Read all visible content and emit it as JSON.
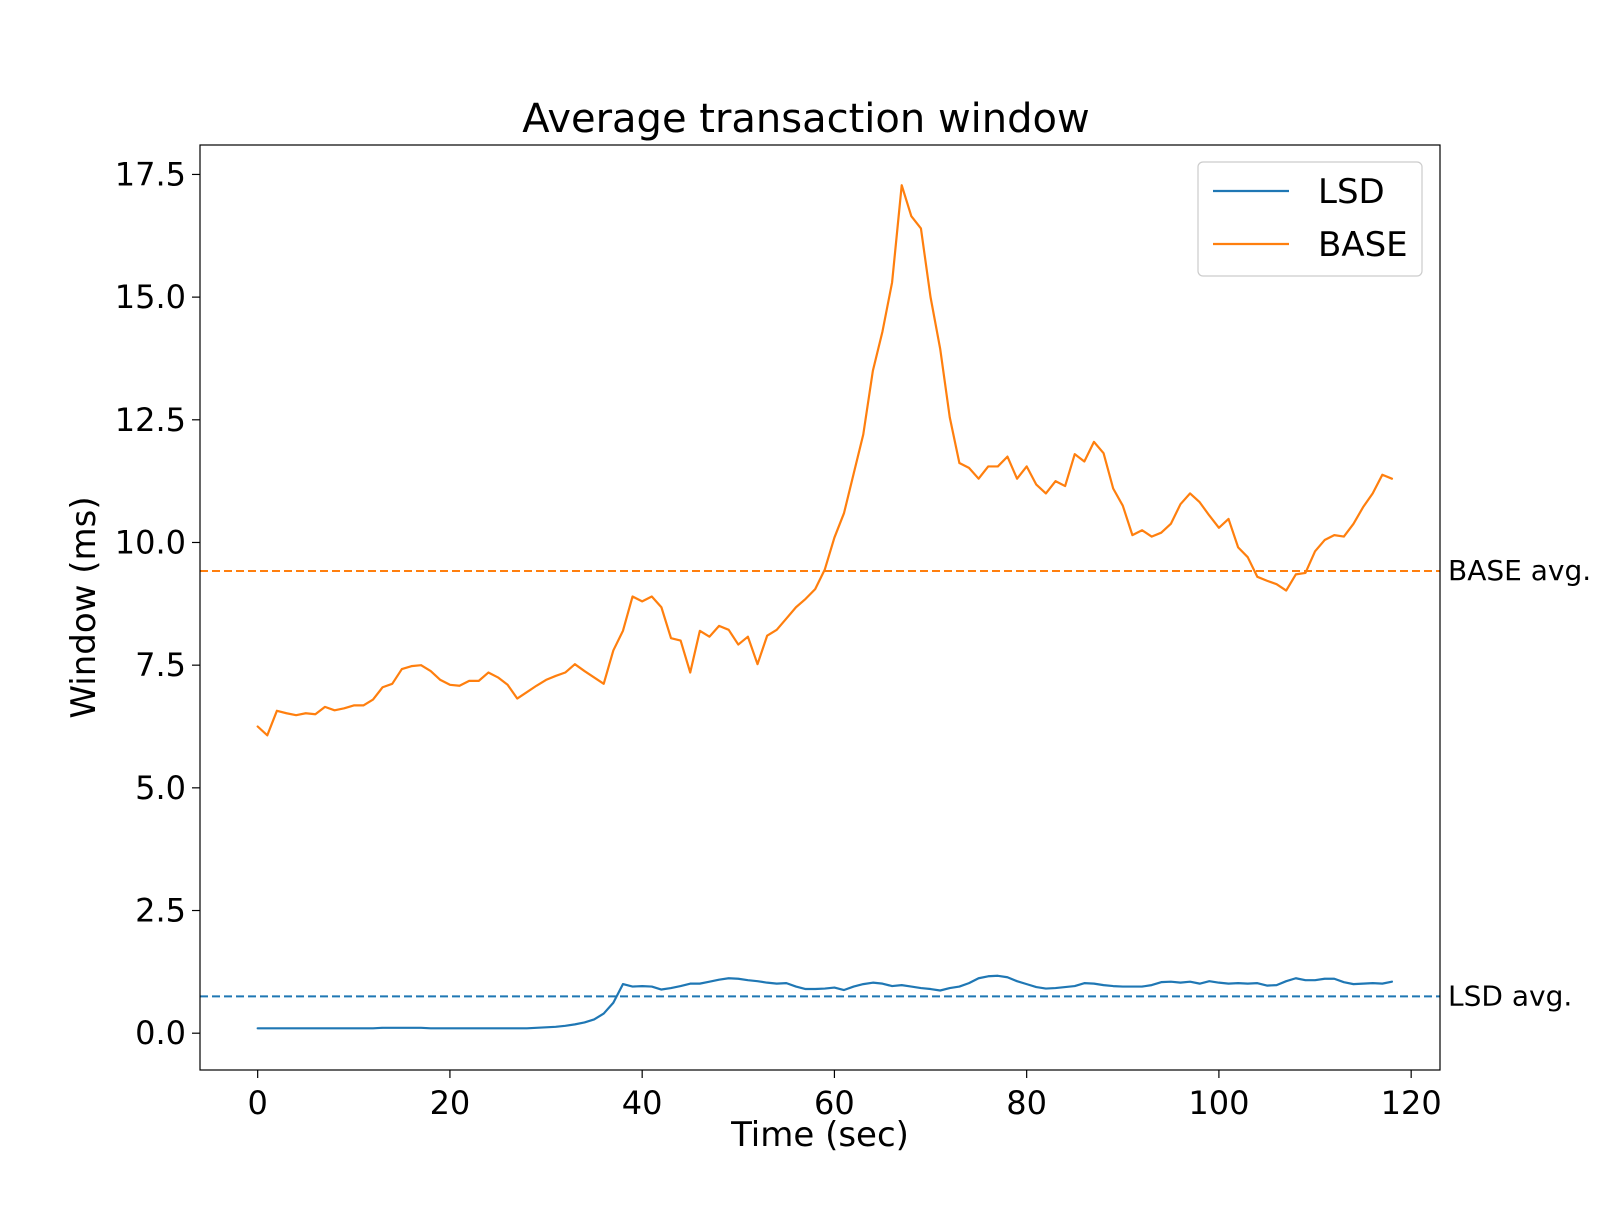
{
  "chart_data": {
    "type": "line",
    "title": "Average transaction window",
    "xlabel": "Time (sec)",
    "ylabel": "Window (ms)",
    "xlim": [
      -6,
      123
    ],
    "ylim": [
      -0.75,
      18.1
    ],
    "xticks": [
      0,
      20,
      40,
      60,
      80,
      100,
      120
    ],
    "xtick_labels": [
      "0",
      "20",
      "40",
      "60",
      "80",
      "100",
      "120"
    ],
    "yticks": [
      0,
      2.5,
      5,
      7.5,
      10,
      12.5,
      15,
      17.5
    ],
    "ytick_labels": [
      "0.0",
      "2.5",
      "5.0",
      "7.5",
      "10.0",
      "12.5",
      "15.0",
      "17.5"
    ],
    "grid": false,
    "legend_position": "top-right",
    "series": [
      {
        "name": "LSD",
        "color": "#1f77b4",
        "x": [
          0,
          1,
          2,
          3,
          4,
          5,
          6,
          7,
          8,
          9,
          10,
          11,
          12,
          13,
          14,
          15,
          16,
          17,
          18,
          19,
          20,
          21,
          22,
          23,
          24,
          25,
          26,
          27,
          28,
          29,
          30,
          31,
          32,
          33,
          34,
          35,
          36,
          37,
          38,
          39,
          40,
          41,
          42,
          43,
          44,
          45,
          46,
          47,
          48,
          49,
          50,
          51,
          52,
          53,
          54,
          55,
          56,
          57,
          58,
          59,
          60,
          61,
          62,
          63,
          64,
          65,
          66,
          67,
          68,
          69,
          70,
          71,
          72,
          73,
          74,
          75,
          76,
          77,
          78,
          79,
          80,
          81,
          82,
          83,
          84,
          85,
          86,
          87,
          88,
          89,
          90,
          91,
          92,
          93,
          94,
          95,
          96,
          97,
          98,
          99,
          100,
          101,
          102,
          103,
          104,
          105,
          106,
          107,
          108,
          109,
          110,
          111,
          112,
          113,
          114,
          115,
          116,
          117,
          118
        ],
        "y": [
          0.1,
          0.1,
          0.1,
          0.1,
          0.1,
          0.1,
          0.1,
          0.1,
          0.1,
          0.1,
          0.1,
          0.1,
          0.1,
          0.11,
          0.11,
          0.11,
          0.11,
          0.11,
          0.1,
          0.1,
          0.1,
          0.1,
          0.1,
          0.1,
          0.1,
          0.1,
          0.1,
          0.1,
          0.1,
          0.11,
          0.12,
          0.13,
          0.15,
          0.18,
          0.22,
          0.28,
          0.4,
          0.62,
          1.0,
          0.95,
          0.96,
          0.95,
          0.89,
          0.92,
          0.96,
          1.01,
          1.01,
          1.05,
          1.09,
          1.12,
          1.11,
          1.08,
          1.06,
          1.03,
          1.01,
          1.02,
          0.95,
          0.9,
          0.9,
          0.91,
          0.93,
          0.88,
          0.95,
          1.0,
          1.03,
          1.01,
          0.96,
          0.98,
          0.95,
          0.92,
          0.9,
          0.87,
          0.92,
          0.95,
          1.02,
          1.12,
          1.16,
          1.17,
          1.14,
          1.06,
          1.0,
          0.94,
          0.91,
          0.92,
          0.94,
          0.96,
          1.02,
          1.01,
          0.98,
          0.96,
          0.95,
          0.95,
          0.95,
          0.98,
          1.04,
          1.05,
          1.03,
          1.05,
          1.01,
          1.06,
          1.03,
          1.01,
          1.02,
          1.01,
          1.02,
          0.97,
          0.98,
          1.06,
          1.12,
          1.08,
          1.08,
          1.11,
          1.11,
          1.04,
          1.0,
          1.01,
          1.02,
          1.01,
          1.05
        ]
      },
      {
        "name": "BASE",
        "color": "#ff7f0e",
        "x": [
          0,
          1,
          2,
          3,
          4,
          5,
          6,
          7,
          8,
          9,
          10,
          11,
          12,
          13,
          14,
          15,
          16,
          17,
          18,
          19,
          20,
          21,
          22,
          23,
          24,
          25,
          26,
          27,
          28,
          29,
          30,
          31,
          32,
          33,
          34,
          35,
          36,
          37,
          38,
          39,
          40,
          41,
          42,
          43,
          44,
          45,
          46,
          47,
          48,
          49,
          50,
          51,
          52,
          53,
          54,
          55,
          56,
          57,
          58,
          59,
          60,
          61,
          62,
          63,
          64,
          65,
          66,
          67,
          68,
          69,
          70,
          71,
          72,
          73,
          74,
          75,
          76,
          77,
          78,
          79,
          80,
          81,
          82,
          83,
          84,
          85,
          86,
          87,
          88,
          89,
          90,
          91,
          92,
          93,
          94,
          95,
          96,
          97,
          98,
          99,
          100,
          101,
          102,
          103,
          104,
          105,
          106,
          107,
          108,
          109,
          110,
          111,
          112,
          113,
          114,
          115,
          116,
          117,
          118
        ],
        "y": [
          6.25,
          6.07,
          6.57,
          6.52,
          6.48,
          6.52,
          6.5,
          6.65,
          6.58,
          6.62,
          6.68,
          6.68,
          6.8,
          7.05,
          7.12,
          7.42,
          7.48,
          7.5,
          7.38,
          7.2,
          7.1,
          7.08,
          7.18,
          7.18,
          7.35,
          7.25,
          7.1,
          6.82,
          6.95,
          7.08,
          7.2,
          7.28,
          7.35,
          7.52,
          7.38,
          7.25,
          7.12,
          7.8,
          8.2,
          8.9,
          8.8,
          8.9,
          8.68,
          8.05,
          8.0,
          7.35,
          8.2,
          8.08,
          8.3,
          8.22,
          7.92,
          8.08,
          7.52,
          8.1,
          8.22,
          8.45,
          8.68,
          8.85,
          9.05,
          9.45,
          10.1,
          10.6,
          11.4,
          12.2,
          13.5,
          14.3,
          15.3,
          17.28,
          16.65,
          16.4,
          15.0,
          13.95,
          12.55,
          11.62,
          11.52,
          11.3,
          11.55,
          11.55,
          11.75,
          11.3,
          11.55,
          11.18,
          11.0,
          11.25,
          11.15,
          11.8,
          11.65,
          12.05,
          11.82,
          11.1,
          10.75,
          10.15,
          10.25,
          10.12,
          10.2,
          10.38,
          10.78,
          11.0,
          10.82,
          10.55,
          10.3,
          10.48,
          9.9,
          9.7,
          9.3,
          9.22,
          9.15,
          9.02,
          9.35,
          9.38,
          9.82,
          10.05,
          10.15,
          10.12,
          10.38,
          10.72,
          11.0,
          11.38,
          11.3
        ]
      }
    ],
    "reference_lines": [
      {
        "name": "BASE avg.",
        "value": 9.42,
        "color": "#ff7f0e"
      },
      {
        "name": "LSD avg.",
        "value": 0.75,
        "color": "#1f77b4"
      }
    ]
  }
}
